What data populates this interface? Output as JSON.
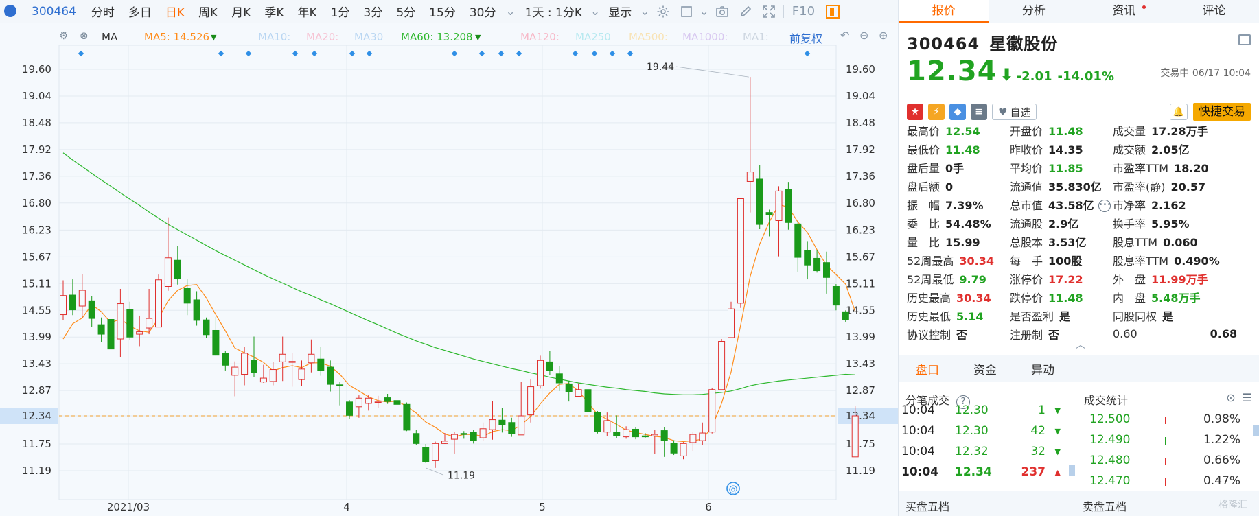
{
  "toolbar": {
    "code": "300464",
    "periods": [
      "分时",
      "多日",
      "日K",
      "周K",
      "月K",
      "季K",
      "年K",
      "1分",
      "3分",
      "5分",
      "15分",
      "30分"
    ],
    "active_period": "日K",
    "interval_select": "1天 : 1分K",
    "display_menu": "显示",
    "f10": "F10"
  },
  "ma_legend": {
    "ma_label": "MA",
    "items": [
      {
        "text": "MA5: 14.526",
        "color": "#ff8c1a"
      },
      {
        "text": "MA10:",
        "color": "#b9d6f2"
      },
      {
        "text": "MA20:",
        "color": "#f6c3d3"
      },
      {
        "text": "MA30",
        "color": "#b9d6f2"
      },
      {
        "text": "MA60: 13.208",
        "color": "#2eb82e"
      },
      {
        "text": "MA120:",
        "color": "#f7b9c8"
      },
      {
        "text": "MA250",
        "color": "#b7e9f0"
      },
      {
        "text": "MA500:",
        "color": "#f8e3b5"
      },
      {
        "text": "MA1000:",
        "color": "#d8c8f0"
      },
      {
        "text": "MA1:",
        "color": "#cdd6e0"
      }
    ],
    "adjust_label": "前复权"
  },
  "chart_data": {
    "type": "candlestick",
    "ylim": [
      10.9,
      19.9
    ],
    "y_ticks": [
      "19.60",
      "19.04",
      "18.48",
      "17.92",
      "17.36",
      "16.80",
      "16.23",
      "15.67",
      "15.11",
      "14.55",
      "13.99",
      "13.43",
      "12.87",
      "12.34",
      "11.75",
      "11.19"
    ],
    "x_labels": [
      "2021/03",
      "4",
      "5",
      "6"
    ],
    "current_price_label": "12.34",
    "high_annotation": "19.44",
    "low_annotation": "11.19",
    "candles": [
      [
        14.46,
        14.86,
        14.35,
        15.18
      ],
      [
        14.87,
        14.56,
        14.45,
        15.2
      ],
      [
        14.64,
        14.97,
        14.39,
        15.31
      ],
      [
        14.75,
        14.38,
        14.2,
        14.85
      ],
      [
        14.25,
        14.05,
        13.88,
        14.4
      ],
      [
        14.36,
        13.74,
        13.72,
        14.45
      ],
      [
        13.95,
        14.69,
        13.57,
        15.0
      ],
      [
        14.57,
        13.99,
        13.93,
        14.73
      ],
      [
        14.05,
        14.1,
        13.8,
        14.44
      ],
      [
        14.18,
        14.38,
        14.05,
        15.0
      ],
      [
        14.2,
        15.19,
        14.2,
        15.3
      ],
      [
        15.05,
        15.65,
        14.96,
        16.5
      ],
      [
        15.6,
        15.22,
        15.09,
        15.9
      ],
      [
        15.02,
        14.7,
        14.45,
        15.2
      ],
      [
        14.77,
        14.34,
        14.23,
        14.95
      ],
      [
        14.35,
        14.04,
        13.97,
        14.4
      ],
      [
        14.13,
        13.61,
        13.6,
        14.41
      ],
      [
        13.65,
        13.4,
        13.29,
        13.7
      ],
      [
        13.19,
        13.36,
        12.75,
        13.48
      ],
      [
        13.21,
        13.65,
        12.98,
        13.79
      ],
      [
        13.5,
        13.24,
        13.15,
        14.0
      ],
      [
        13.05,
        13.13,
        13.03,
        13.41
      ],
      [
        13.06,
        13.31,
        12.98,
        13.47
      ],
      [
        13.47,
        13.63,
        13.07,
        14.0
      ],
      [
        13.46,
        13.48,
        12.95,
        13.66
      ],
      [
        13.1,
        13.32,
        12.97,
        13.5
      ],
      [
        13.45,
        13.63,
        13.25,
        13.94
      ],
      [
        13.53,
        13.29,
        13.18,
        13.78
      ],
      [
        13.36,
        13.0,
        12.85,
        13.5
      ],
      [
        12.99,
        12.97,
        12.56,
        13.05
      ],
      [
        12.63,
        12.35,
        12.27,
        12.67
      ],
      [
        12.53,
        12.71,
        12.3,
        12.77
      ],
      [
        12.6,
        12.71,
        12.45,
        12.78
      ],
      [
        12.62,
        12.63,
        12.5,
        12.76
      ],
      [
        12.72,
        12.64,
        12.59,
        12.8
      ],
      [
        12.66,
        12.58,
        12.56,
        12.7
      ],
      [
        12.58,
        12.04,
        12.02,
        12.62
      ],
      [
        11.97,
        11.76,
        11.73,
        12.04
      ],
      [
        11.68,
        11.38,
        11.35,
        11.75
      ],
      [
        11.4,
        11.76,
        11.25,
        11.8
      ],
      [
        11.76,
        11.81,
        11.75,
        11.98
      ],
      [
        11.85,
        11.95,
        11.55,
        12.0
      ],
      [
        11.97,
        11.95,
        11.86,
        12.02
      ],
      [
        11.99,
        11.82,
        11.76,
        12.04
      ],
      [
        11.88,
        12.07,
        11.82,
        12.2
      ],
      [
        12.05,
        12.26,
        11.84,
        12.65
      ],
      [
        12.25,
        12.16,
        11.99,
        12.5
      ],
      [
        12.2,
        11.97,
        11.9,
        12.3
      ],
      [
        11.94,
        12.34,
        11.94,
        13.05
      ],
      [
        12.36,
        12.95,
        12.2,
        13.1
      ],
      [
        12.97,
        13.5,
        12.91,
        13.6
      ],
      [
        13.47,
        13.29,
        13.2,
        13.7
      ],
      [
        13.22,
        13.03,
        12.86,
        13.38
      ],
      [
        13.01,
        12.84,
        12.64,
        13.07
      ],
      [
        12.75,
        12.89,
        12.73,
        13.02
      ],
      [
        12.89,
        12.43,
        12.27,
        12.93
      ],
      [
        12.41,
        12.01,
        11.97,
        12.44
      ],
      [
        12.0,
        12.24,
        11.91,
        12.41
      ],
      [
        11.99,
        11.93,
        11.87,
        12.35
      ],
      [
        11.9,
        12.05,
        11.86,
        12.12
      ],
      [
        12.06,
        11.9,
        11.85,
        12.11
      ],
      [
        11.92,
        11.9,
        11.87,
        11.98
      ],
      [
        11.92,
        11.95,
        11.54,
        12.04
      ],
      [
        12.03,
        11.83,
        11.48,
        12.11
      ],
      [
        11.76,
        11.56,
        11.52,
        11.83
      ],
      [
        11.5,
        11.76,
        11.43,
        11.79
      ],
      [
        11.78,
        11.95,
        11.6,
        12.0
      ],
      [
        11.82,
        11.98,
        11.73,
        12.2
      ],
      [
        12.0,
        12.89,
        11.97,
        12.93
      ],
      [
        12.89,
        13.9,
        12.88,
        13.95
      ],
      [
        13.98,
        14.58,
        13.98,
        14.73
      ],
      [
        14.7,
        16.89,
        14.6,
        16.89
      ],
      [
        17.25,
        17.45,
        16.6,
        19.44
      ],
      [
        17.3,
        16.35,
        16.25,
        17.6
      ],
      [
        16.6,
        16.55,
        16.1,
        16.66
      ],
      [
        16.43,
        17.05,
        15.68,
        17.15
      ],
      [
        17.09,
        16.39,
        16.24,
        17.24
      ],
      [
        16.36,
        15.66,
        15.36,
        16.42
      ],
      [
        15.8,
        15.5,
        15.2,
        16.0
      ],
      [
        15.64,
        15.38,
        15.34,
        15.81
      ],
      [
        15.55,
        15.24,
        14.9,
        15.78
      ],
      [
        15.05,
        14.66,
        14.55,
        15.1
      ],
      [
        14.52,
        14.35,
        14.3,
        14.55
      ],
      [
        11.48,
        12.34,
        11.48,
        12.54
      ]
    ],
    "ma5": [
      13.95,
      14.27,
      14.39,
      14.67,
      14.52,
      14.29,
      14.37,
      14.22,
      14.12,
      14.09,
      14.38,
      14.75,
      14.97,
      15.07,
      15.09,
      14.81,
      14.46,
      14.12,
      13.76,
      13.66,
      13.57,
      13.46,
      13.28,
      13.35,
      13.39,
      13.35,
      13.45,
      13.45,
      13.38,
      13.21,
      12.98,
      12.86,
      12.74,
      12.66,
      12.63,
      12.65,
      12.54,
      12.4,
      12.21,
      12.1,
      11.96,
      11.9,
      11.95,
      11.95,
      11.91,
      12.01,
      12.05,
      12.03,
      12.15,
      12.33,
      12.59,
      12.82,
      13.0,
      13.02,
      12.86,
      12.62,
      12.37,
      12.27,
      12.16,
      12.04,
      11.99,
      11.95,
      11.91,
      11.89,
      11.82,
      11.8,
      11.82,
      11.85,
      12.11,
      12.6,
      13.26,
      14.24,
      15.26,
      15.94,
      16.4,
      16.77,
      16.71,
      16.4,
      16.18,
      15.82,
      15.49,
      15.3,
      15.1,
      14.53
    ],
    "ma60": [
      17.85,
      17.7,
      17.56,
      17.42,
      17.28,
      17.15,
      17.01,
      16.88,
      16.75,
      16.61,
      16.48,
      16.35,
      16.24,
      16.13,
      16.02,
      15.91,
      15.8,
      15.7,
      15.6,
      15.5,
      15.4,
      15.3,
      15.21,
      15.12,
      15.03,
      14.94,
      14.86,
      14.77,
      14.69,
      14.6,
      14.51,
      14.42,
      14.33,
      14.25,
      14.16,
      14.07,
      13.99,
      13.91,
      13.84,
      13.77,
      13.71,
      13.65,
      13.59,
      13.53,
      13.48,
      13.43,
      13.38,
      13.33,
      13.29,
      13.24,
      13.2,
      13.15,
      13.11,
      13.07,
      13.03,
      13.0,
      12.97,
      12.94,
      12.92,
      12.89,
      12.87,
      12.85,
      12.82,
      12.8,
      12.79,
      12.78,
      12.78,
      12.79,
      12.81,
      12.83,
      12.86,
      12.91,
      12.97,
      13.01,
      13.04,
      13.07,
      13.09,
      13.11,
      13.13,
      13.15,
      13.17,
      13.19,
      13.21,
      13.2
    ]
  },
  "panel": {
    "tabs": [
      "报价",
      "分析",
      "资讯",
      "评论"
    ],
    "active_tab": "报价",
    "code": "300464",
    "name": "星徽股份",
    "price": "12.34",
    "change": "-2.01",
    "change_pct": "-14.01%",
    "status_time": "交易中 06/17 10:04",
    "watchlist_label": "自选",
    "quick_trade": "快捷交易",
    "stats": [
      [
        {
          "label": "最高价",
          "value": "12.54",
          "color": "green"
        },
        {
          "label": "开盘价",
          "value": "11.48",
          "color": "green"
        },
        {
          "label": "成交量",
          "value": "17.28万手",
          "color": "dark"
        }
      ],
      [
        {
          "label": "最低价",
          "value": "11.48",
          "color": "green"
        },
        {
          "label": "昨收价",
          "value": "14.35",
          "color": "dark"
        },
        {
          "label": "成交额",
          "value": "2.05亿",
          "color": "dark"
        }
      ],
      [
        {
          "label": "盘后量",
          "value": "0手",
          "color": "dark"
        },
        {
          "label": "平均价",
          "value": "11.85",
          "color": "green"
        },
        {
          "label": "市盈率TTM",
          "value": "18.20",
          "color": "dark"
        }
      ],
      [
        {
          "label": "盘后额",
          "value": "0",
          "color": "dark"
        },
        {
          "label": "流通值",
          "value": "35.830亿",
          "color": "dark"
        },
        {
          "label": "市盈率(静)",
          "value": "20.57",
          "color": "dark"
        }
      ],
      [
        {
          "label": "振　幅",
          "value": "7.39%",
          "color": "dark"
        },
        {
          "label": "总市值",
          "value": "43.58亿",
          "color": "dark"
        },
        {
          "label": "市净率",
          "value": "2.162",
          "color": "dark"
        }
      ],
      [
        {
          "label": "委　比",
          "value": "54.48%",
          "color": "dark"
        },
        {
          "label": "流通股",
          "value": "2.9亿",
          "color": "dark"
        },
        {
          "label": "换手率",
          "value": "5.95%",
          "color": "dark"
        }
      ],
      [
        {
          "label": "量　比",
          "value": "15.99",
          "color": "dark"
        },
        {
          "label": "总股本",
          "value": "3.53亿",
          "color": "dark"
        },
        {
          "label": "股息TTM",
          "value": "0.060",
          "color": "dark"
        }
      ],
      [
        {
          "label": "52周最高",
          "value": "30.34",
          "color": "red"
        },
        {
          "label": "每　手",
          "value": "100股",
          "color": "dark"
        },
        {
          "label": "股息率TTM",
          "value": "0.490%",
          "color": "dark"
        }
      ],
      [
        {
          "label": "52周最低",
          "value": "9.79",
          "color": "green"
        },
        {
          "label": "涨停价",
          "value": "17.22",
          "color": "red"
        },
        {
          "label": "外　盘",
          "value": "11.99万手",
          "color": "red"
        }
      ],
      [
        {
          "label": "历史最高",
          "value": "30.34",
          "color": "red"
        },
        {
          "label": "跌停价",
          "value": "11.48",
          "color": "green"
        },
        {
          "label": "内　盘",
          "value": "5.48万手",
          "color": "green"
        }
      ],
      [
        {
          "label": "历史最低",
          "value": "5.14",
          "color": "green"
        },
        {
          "label": "是否盈利",
          "value": "是",
          "color": "dark"
        },
        {
          "label": "同股同权",
          "value": "是",
          "color": "dark"
        }
      ],
      [
        {
          "label": "协议控制",
          "value": "否",
          "color": "dark"
        },
        {
          "label": "注册制",
          "value": "否",
          "color": "dark"
        },
        {
          "label": "0.60",
          "value": "0.68",
          "color": "dark"
        }
      ]
    ],
    "subtabs": [
      "盘口",
      "资金",
      "异动"
    ],
    "active_subtab": "盘口",
    "trades_title": "分笔成交",
    "trades": [
      {
        "time": "10:04",
        "price": "12.30",
        "vol": "1",
        "dir": "down"
      },
      {
        "time": "10:04",
        "price": "12.30",
        "vol": "42",
        "dir": "down"
      },
      {
        "time": "10:04",
        "price": "12.32",
        "vol": "32",
        "dir": "down"
      },
      {
        "time": "10:04",
        "price": "12.34",
        "vol": "237",
        "dir": "up"
      }
    ],
    "dist_title": "成交统计",
    "distribution": [
      {
        "price": "12.500",
        "pct": "0.98%",
        "bar": "red"
      },
      {
        "price": "12.490",
        "pct": "1.22%",
        "bar": "green"
      },
      {
        "price": "12.480",
        "pct": "0.66%",
        "bar": "red"
      },
      {
        "price": "12.470",
        "pct": "0.47%",
        "bar": "red"
      }
    ],
    "buy5": "买盘五档",
    "sell5": "卖盘五档"
  }
}
